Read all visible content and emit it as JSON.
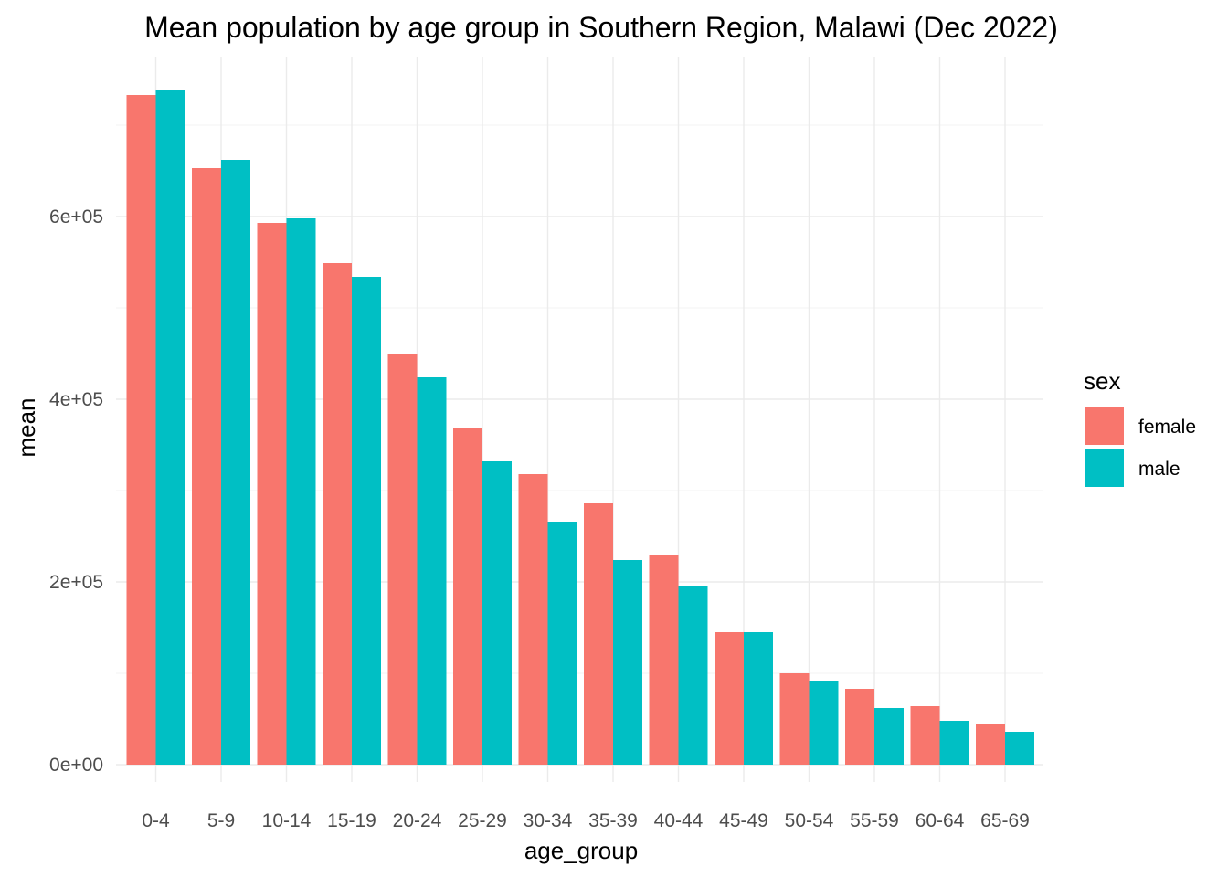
{
  "chart_data": {
    "type": "bar",
    "title": "Mean population by age group in Southern Region, Malawi (Dec 2022)",
    "xlabel": "age_group",
    "ylabel": "mean",
    "categories": [
      "0-4",
      "5-9",
      "10-14",
      "15-19",
      "20-24",
      "25-29",
      "30-34",
      "35-39",
      "40-44",
      "45-49",
      "50-54",
      "55-59",
      "60-64",
      "65-69"
    ],
    "series": [
      {
        "name": "female",
        "color": "#F8766D",
        "values": [
          733000,
          653000,
          593000,
          549000,
          450000,
          368000,
          318000,
          286000,
          229000,
          145000,
          100000,
          83000,
          64000,
          45000
        ]
      },
      {
        "name": "male",
        "color": "#00BFC4",
        "values": [
          738000,
          662000,
          598000,
          534000,
          424000,
          332000,
          266000,
          224000,
          196000,
          145000,
          92000,
          62000,
          48000,
          36000
        ]
      }
    ],
    "ylim": [
      0,
      770000
    ],
    "y_ticks": [
      {
        "value": 0,
        "label": "0e+00"
      },
      {
        "value": 200000,
        "label": "2e+05"
      },
      {
        "value": 400000,
        "label": "4e+05"
      },
      {
        "value": 600000,
        "label": "6e+05"
      }
    ],
    "y_minor_ticks": [
      100000,
      300000,
      500000,
      700000
    ],
    "grid": true,
    "legend": {
      "title": "sex",
      "position": "right"
    }
  }
}
